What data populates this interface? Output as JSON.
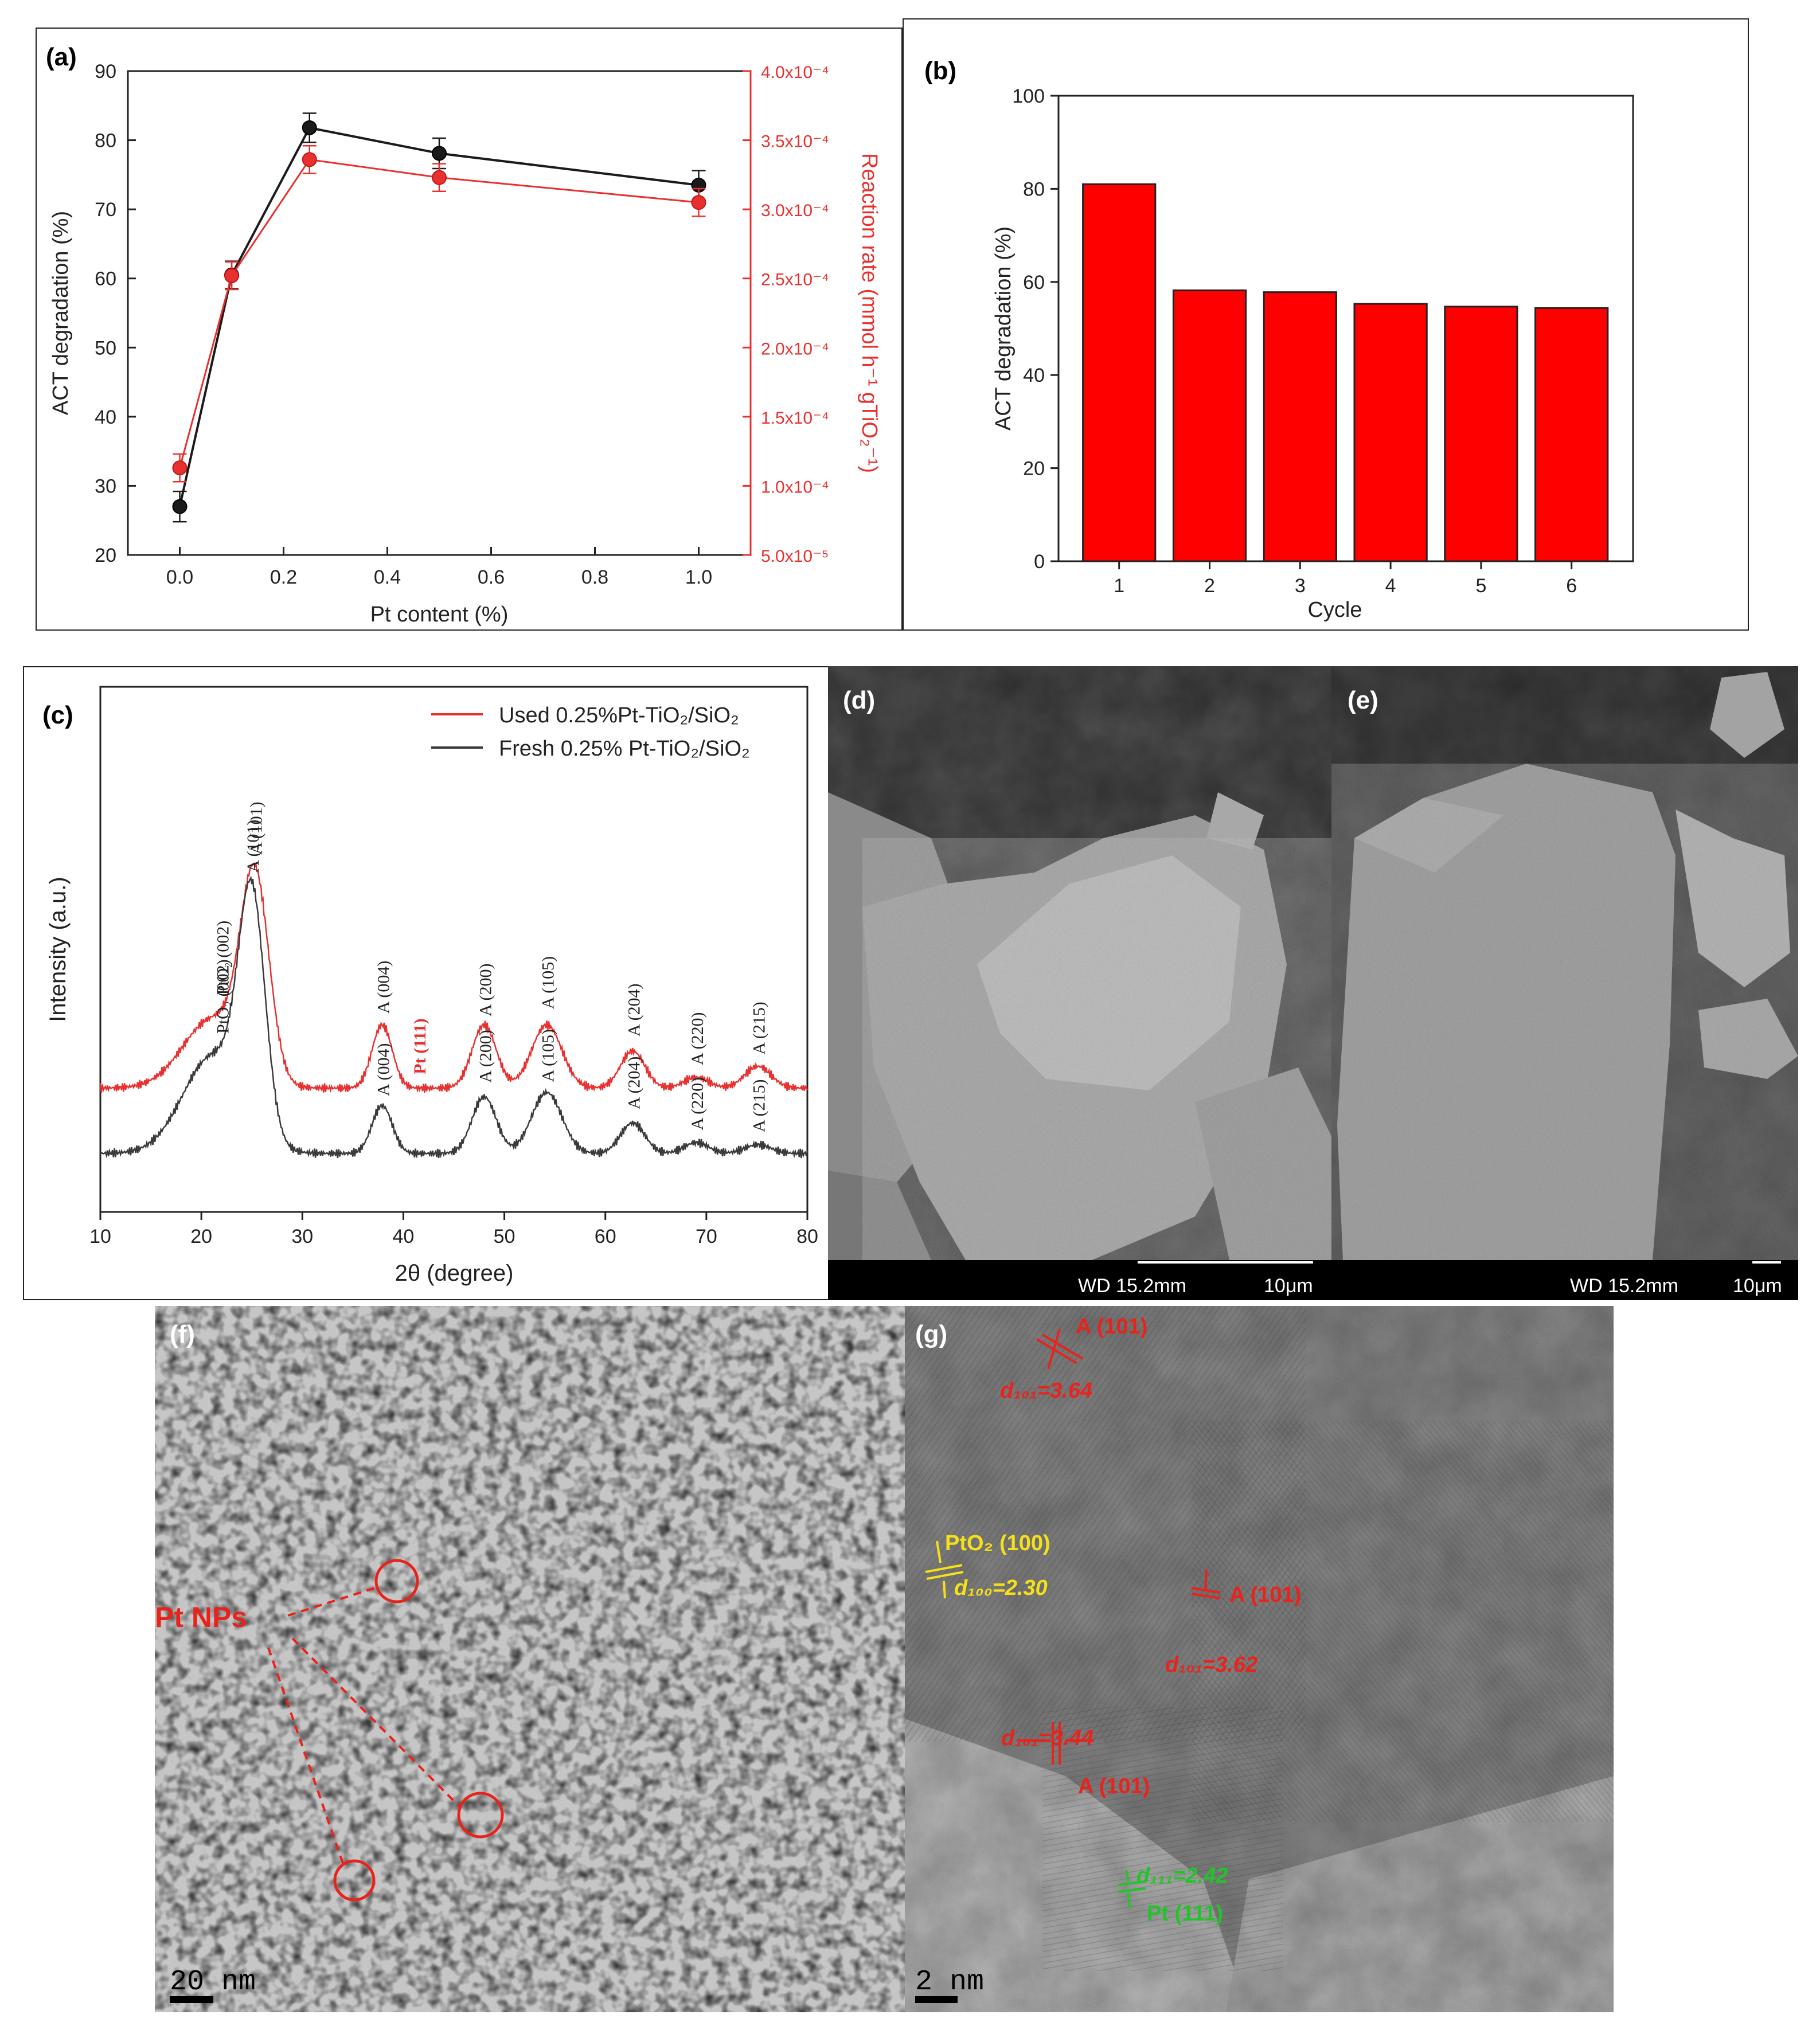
{
  "figure_colors": {
    "black_series": "#1a1a1a",
    "red_series": "#e8302f",
    "bar_fill": "#ff0000",
    "tem_red": "#e8231c",
    "tem_yellow": "#f5e01a",
    "tem_green": "#22c42a"
  },
  "panels": {
    "a": {
      "label": "(a)"
    },
    "b": {
      "label": "(b)"
    },
    "c": {
      "label": "(c)"
    },
    "d": {
      "label": "(d)",
      "info": "WD 15.2mm",
      "scale": "10μm"
    },
    "e": {
      "label": "(e)",
      "info": "WD 15.2mm",
      "scale": "10μm"
    },
    "f": {
      "label": "(f)",
      "scale": "20 nm",
      "annotation": "Pt NPs"
    },
    "g": {
      "label": "(g)",
      "scale": "2 nm"
    }
  },
  "chart_data": [
    {
      "panel": "a",
      "type": "line",
      "xlabel": "Pt content (%)",
      "ylabel_left": "ACT degradation (%)",
      "ylabel_right": "Reaction rate (mmol h⁻¹ gTiO₂⁻¹)",
      "xlim": [
        -0.1,
        1.1
      ],
      "ylim_left": [
        20,
        90
      ],
      "ylim_right": [
        5e-05,
        0.0004
      ],
      "xticks": [
        "0.0",
        "0.2",
        "0.4",
        "0.6",
        "0.8",
        "1.0"
      ],
      "yticks_left": [
        "20",
        "30",
        "40",
        "50",
        "60",
        "70",
        "80",
        "90"
      ],
      "yticks_right": [
        "5.0x10⁻⁵",
        "1.0x10⁻⁴",
        "1.5x10⁻⁴",
        "2.0x10⁻⁴",
        "2.5x10⁻⁴",
        "3.0x10⁻⁴",
        "3.5x10⁻⁴",
        "4.0x10⁻⁴"
      ],
      "x": [
        0.0,
        0.1,
        0.25,
        0.5,
        1.0
      ],
      "series": [
        {
          "axis": "left",
          "color": "#1a1a1a",
          "values": [
            27.0,
            60.5,
            81.8,
            78.1,
            73.5
          ],
          "errors": [
            2.2,
            2.0,
            2.1,
            2.2,
            2.1
          ]
        },
        {
          "axis": "right",
          "color": "#e8302f",
          "values": [
            0.000113,
            0.000252,
            0.000336,
            0.000323,
            0.000305
          ],
          "errors": [
            1e-05,
            1e-05,
            1e-05,
            1e-05,
            1e-05
          ]
        }
      ]
    },
    {
      "panel": "b",
      "type": "bar",
      "xlabel": "Cycle",
      "ylabel": "ACT degradation (%)",
      "ylim": [
        0,
        100
      ],
      "yticks": [
        "0",
        "20",
        "40",
        "60",
        "80",
        "100"
      ],
      "categories": [
        "1",
        "2",
        "3",
        "4",
        "5",
        "6"
      ],
      "values": [
        81.0,
        58.2,
        57.8,
        55.3,
        54.7,
        54.4
      ]
    },
    {
      "panel": "c",
      "type": "line",
      "xlabel": "2θ (degree)",
      "ylabel": "Intensity (a.u.)",
      "xlim": [
        10,
        80
      ],
      "xticks": [
        "10",
        "20",
        "30",
        "40",
        "50",
        "60",
        "70",
        "80"
      ],
      "legend": [
        "Used 0.25%Pt-TiO₂/SiO₂",
        "Fresh 0.25% Pt-TiO₂/SiO₂"
      ],
      "legend_position": "top-right",
      "series": [
        {
          "name": "Used 0.25%Pt-TiO₂/SiO₂",
          "color": "#e8302f",
          "baseline": 0.3,
          "peaks": [
            [
              21.2,
              0.32,
              3.0
            ],
            [
              25.3,
              0.9,
              1.4
            ],
            [
              37.9,
              0.29,
              1.0
            ],
            [
              48.0,
              0.29,
              1.2
            ],
            [
              54.2,
              0.29,
              1.5
            ],
            [
              62.7,
              0.17,
              1.2
            ],
            [
              69.0,
              0.05,
              1.2
            ],
            [
              75.1,
              0.1,
              1.3
            ]
          ],
          "labels": [
            {
              "x": 22.0,
              "text": "PtO₂ (002)"
            },
            {
              "x": 25.3,
              "text": "A (101)"
            },
            {
              "x": 37.9,
              "text": "A (004)"
            },
            {
              "x": 41.5,
              "text": "Pt (111)",
              "highlight": true
            },
            {
              "x": 48.0,
              "text": "A (200)"
            },
            {
              "x": 54.2,
              "text": "A (105)"
            },
            {
              "x": 62.7,
              "text": "A (204)"
            },
            {
              "x": 69.0,
              "text": "A (220)"
            },
            {
              "x": 75.1,
              "text": "A (215)"
            }
          ]
        },
        {
          "name": "Fresh 0.25% Pt-TiO₂/SiO₂",
          "color": "#3a3a3a",
          "baseline": 0.0,
          "peaks": [
            [
              21.2,
              0.45,
              3.0
            ],
            [
              25.0,
              1.05,
              1.3
            ],
            [
              37.9,
              0.22,
              1.0
            ],
            [
              48.0,
              0.26,
              1.2
            ],
            [
              54.2,
              0.28,
              1.5
            ],
            [
              62.7,
              0.14,
              1.2
            ],
            [
              69.0,
              0.05,
              1.2
            ],
            [
              75.1,
              0.04,
              1.3
            ]
          ],
          "labels": [
            {
              "x": 22.0,
              "text": "PtO₂ (002)"
            },
            {
              "x": 25.0,
              "text": "A (101)"
            },
            {
              "x": 37.9,
              "text": "A (004)"
            },
            {
              "x": 48.0,
              "text": "A (200)"
            },
            {
              "x": 54.2,
              "text": "A (105)"
            },
            {
              "x": 62.7,
              "text": "A (204)"
            },
            {
              "x": 69.0,
              "text": "A (220)"
            },
            {
              "x": 75.1,
              "text": "A (215)"
            }
          ]
        }
      ]
    }
  ],
  "tem_annotations": [
    {
      "text": "A (101)",
      "color": "red"
    },
    {
      "text": "d₁₀₁=3.64",
      "color": "red"
    },
    {
      "text": "PtO₂ (100)",
      "color": "yellow"
    },
    {
      "text": "d₁₀₀=2.30",
      "color": "yellow"
    },
    {
      "text": "A (101)",
      "color": "red"
    },
    {
      "text": "d₁₀₁=3.62",
      "color": "red"
    },
    {
      "text": "d₁₀₁=3.44",
      "color": "red"
    },
    {
      "text": "A (101)",
      "color": "red"
    },
    {
      "text": "d₁₁₁=2.42",
      "color": "green"
    },
    {
      "text": "Pt (111)",
      "color": "green"
    }
  ]
}
